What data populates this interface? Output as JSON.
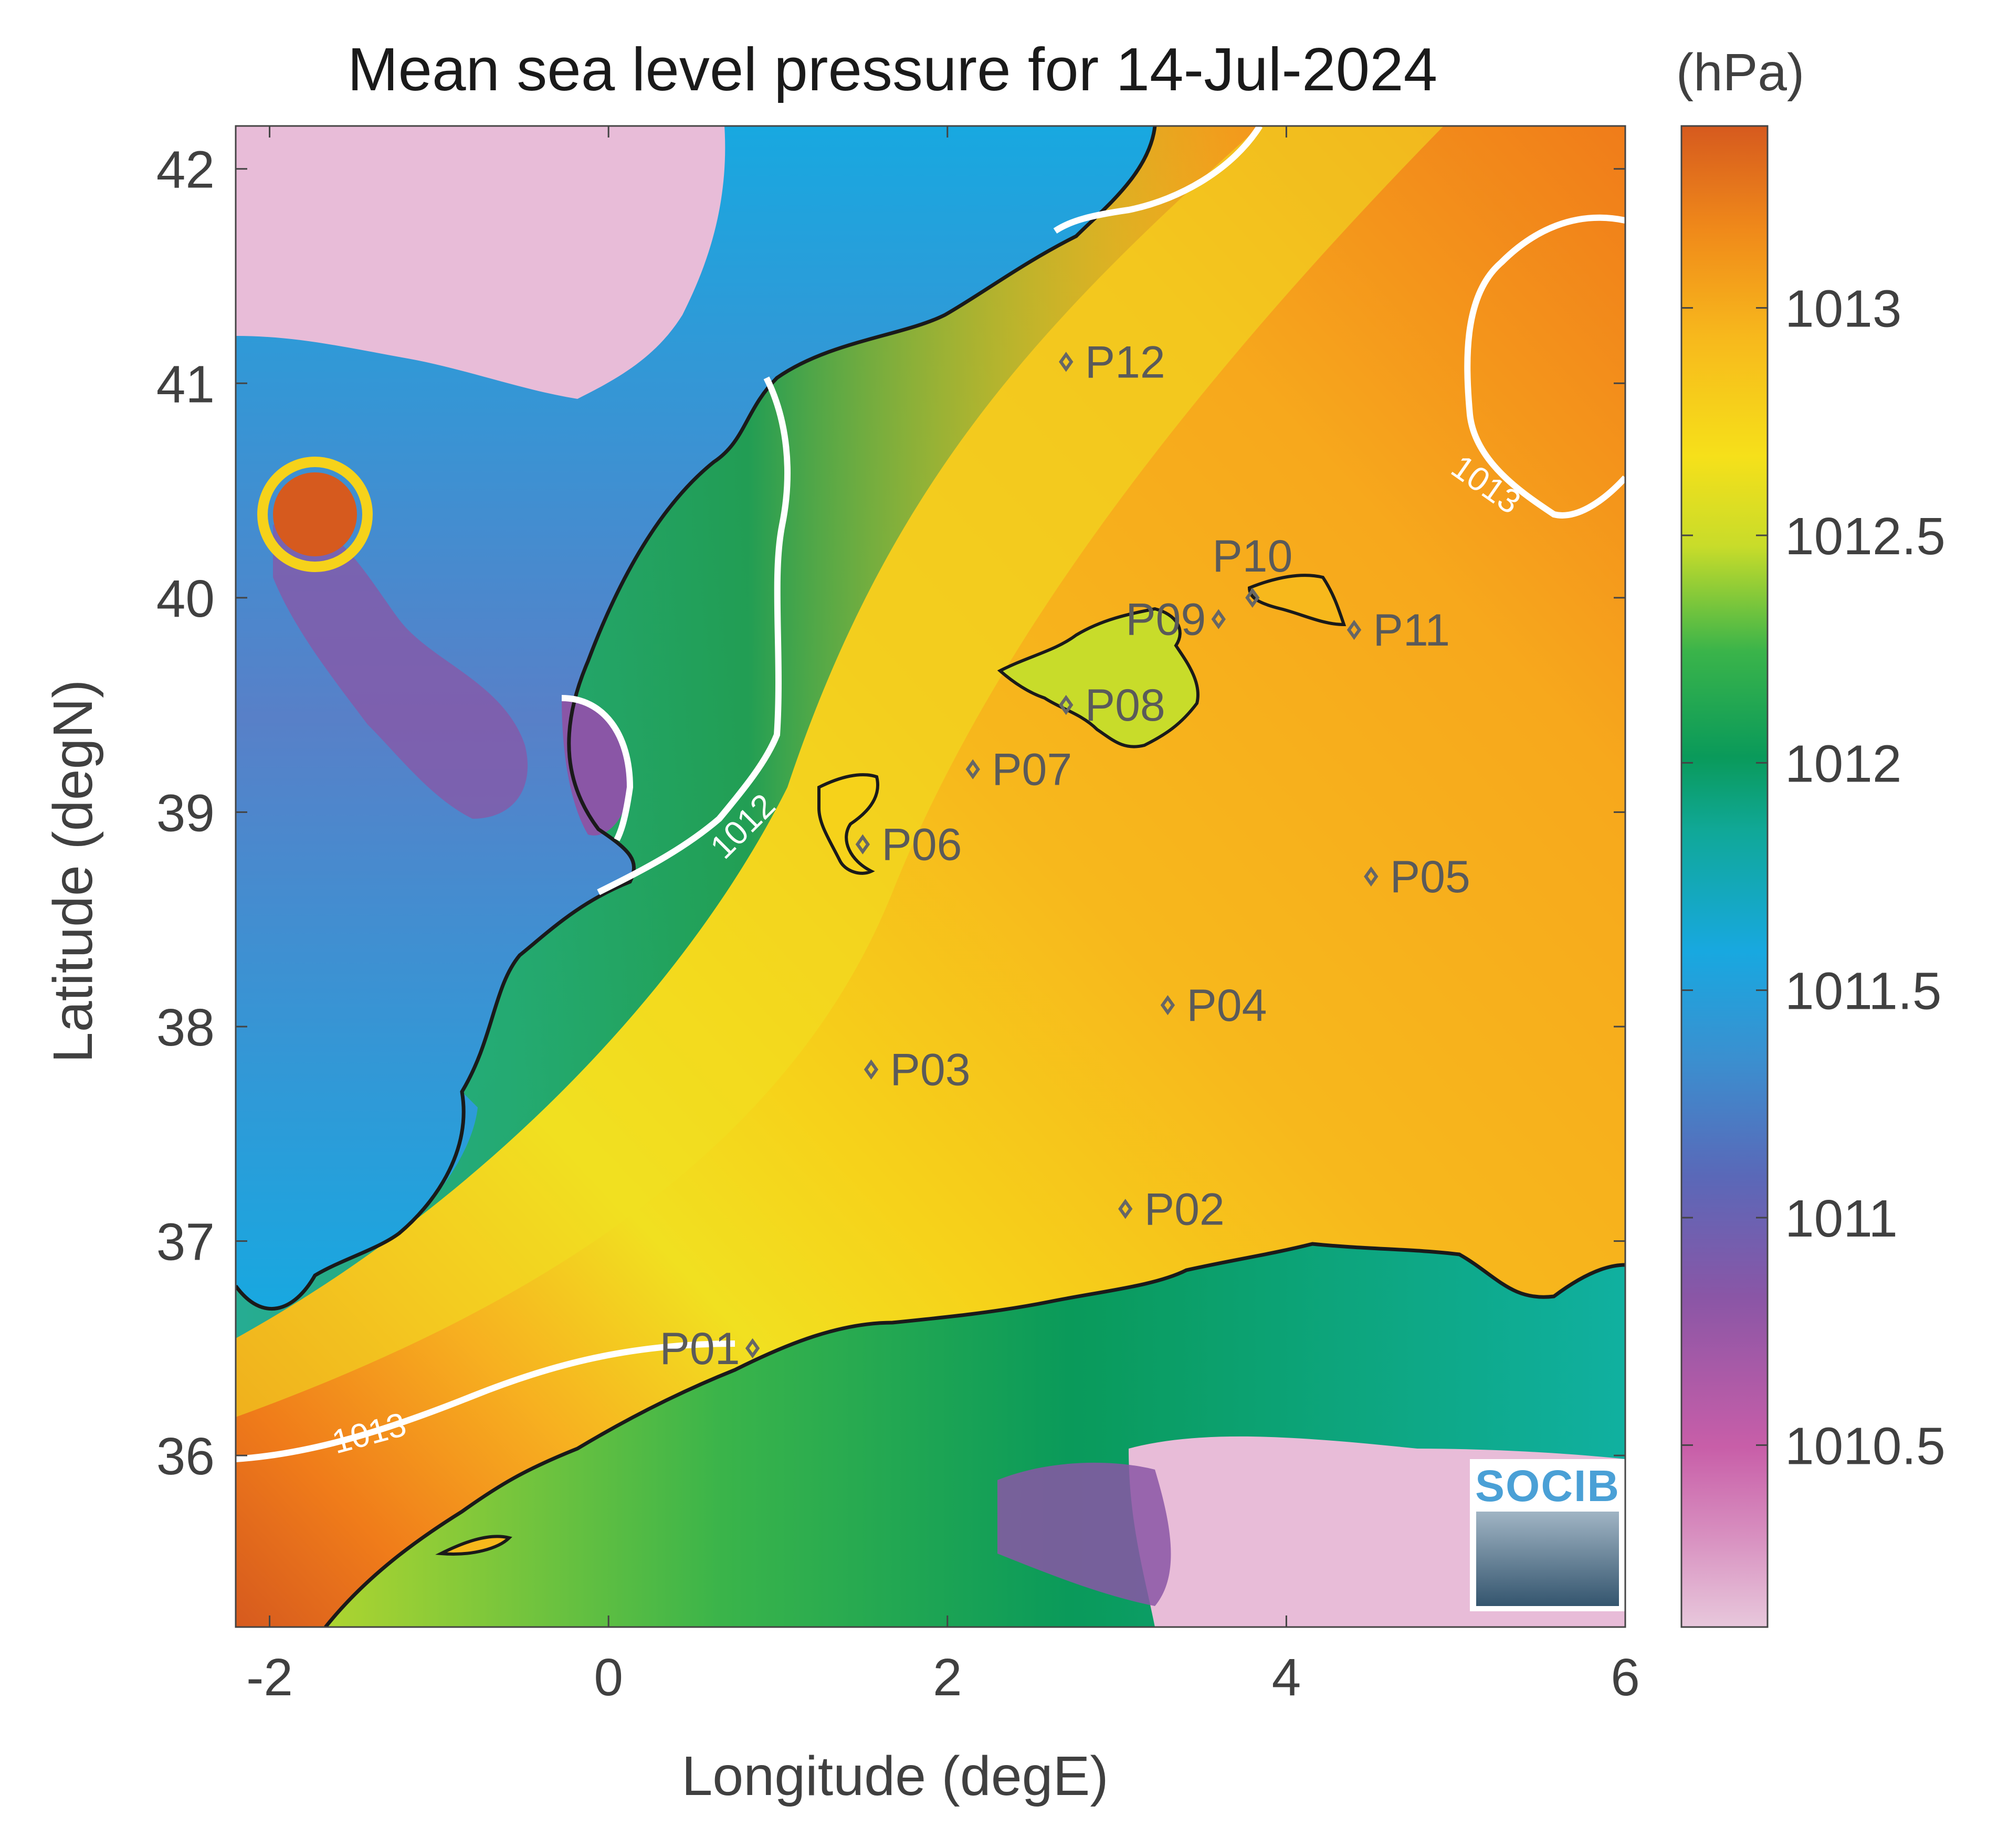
{
  "title": "Mean sea level pressure for 14-Jul-2024",
  "units": "(hPa)",
  "logo": "SOCIB",
  "colors": {
    "land_low": "#e8bcd8",
    "ocean_gradient": [
      "#d65a1e",
      "#f07c1a",
      "#f7a81c",
      "#f6d21a",
      "#c8dc2a",
      "#3ab44a",
      "#0a9a5a",
      "#10b0a0",
      "#18a8e0",
      "#5880c8",
      "#8a56a6",
      "#c85ea8",
      "#e8bcd8"
    ],
    "coast": "#1a1a1a",
    "contour": "#ffffff",
    "station": "#666666"
  },
  "chart_data": {
    "type": "heatmap",
    "xlabel": "Longitude (degE)",
    "ylabel": "Latitude (degN)",
    "xlim": [
      -2.2,
      6
    ],
    "ylim": [
      35.2,
      42.2
    ],
    "xticks": [
      -2,
      0,
      2,
      4,
      6
    ],
    "yticks": [
      36,
      37,
      38,
      39,
      40,
      41,
      42
    ],
    "colorbar": {
      "label": "(hPa)",
      "range": [
        1010.1,
        1013.4
      ],
      "ticks": [
        1010.5,
        1011,
        1011.5,
        1012,
        1012.5,
        1013
      ]
    },
    "contours": [
      {
        "level": 1012,
        "label": "1012"
      },
      {
        "level": 1013,
        "label": "1013"
      },
      {
        "level": 1013,
        "label": "1013"
      }
    ],
    "stations": [
      {
        "name": "P01",
        "lon": 0.85,
        "lat": 36.5
      },
      {
        "name": "P02",
        "lon": 3.05,
        "lat": 37.15
      },
      {
        "name": "P03",
        "lon": 1.55,
        "lat": 37.8
      },
      {
        "name": "P04",
        "lon": 3.3,
        "lat": 38.1
      },
      {
        "name": "P05",
        "lon": 4.5,
        "lat": 38.7
      },
      {
        "name": "P06",
        "lon": 1.5,
        "lat": 38.85
      },
      {
        "name": "P07",
        "lon": 2.15,
        "lat": 39.2
      },
      {
        "name": "P08",
        "lon": 2.7,
        "lat": 39.5
      },
      {
        "name": "P09",
        "lon": 3.6,
        "lat": 39.9
      },
      {
        "name": "P10",
        "lon": 3.8,
        "lat": 40.0
      },
      {
        "name": "P11",
        "lon": 4.4,
        "lat": 39.85
      },
      {
        "name": "P12",
        "lon": 2.7,
        "lat": 41.1
      }
    ]
  }
}
